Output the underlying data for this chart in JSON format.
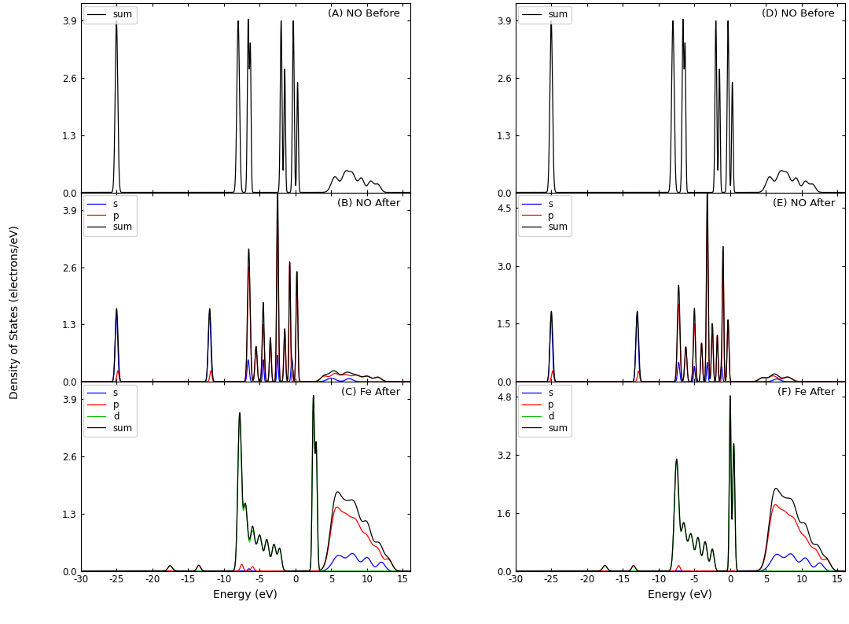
{
  "panels": [
    {
      "label": "(A) NO Before",
      "ylim": [
        0,
        4.3
      ],
      "yticks": [
        0.0,
        1.3,
        2.6,
        3.9
      ],
      "type": "A",
      "legend_items": [
        "sum"
      ]
    },
    {
      "label": "(B) NO After",
      "ylim": [
        0,
        4.3
      ],
      "yticks": [
        0.0,
        1.3,
        2.6,
        3.9
      ],
      "type": "B",
      "legend_items": [
        "s",
        "p",
        "sum"
      ]
    },
    {
      "label": "(C) Fe After",
      "ylim": [
        0,
        4.3
      ],
      "yticks": [
        0.0,
        1.3,
        2.6,
        3.9
      ],
      "type": "C",
      "legend_items": [
        "s",
        "p",
        "d",
        "sum"
      ]
    },
    {
      "label": "(D) NO Before",
      "ylim": [
        0,
        4.3
      ],
      "yticks": [
        0.0,
        1.3,
        2.6,
        3.9
      ],
      "type": "A",
      "legend_items": [
        "sum"
      ]
    },
    {
      "label": "(E) NO After",
      "ylim": [
        0,
        4.9
      ],
      "yticks": [
        0.0,
        1.5,
        3.0,
        4.5
      ],
      "type": "E",
      "legend_items": [
        "s",
        "p",
        "sum"
      ]
    },
    {
      "label": "(F) Fe After",
      "ylim": [
        0,
        5.2
      ],
      "yticks": [
        0.0,
        1.6,
        3.2,
        4.8
      ],
      "type": "F",
      "legend_items": [
        "s",
        "p",
        "d",
        "sum"
      ]
    }
  ],
  "xlim": [
    -30,
    16
  ],
  "xticks": [
    -30,
    -25,
    -20,
    -15,
    -10,
    -5,
    0,
    5,
    10,
    15
  ],
  "xlabel": "Energy (eV)",
  "ylabel": "Density of States (electrons/eV)",
  "colors": {
    "s": "#0000FF",
    "p": "#FF0000",
    "d": "#00BB00",
    "sum": "#000000"
  },
  "background": "#ffffff"
}
